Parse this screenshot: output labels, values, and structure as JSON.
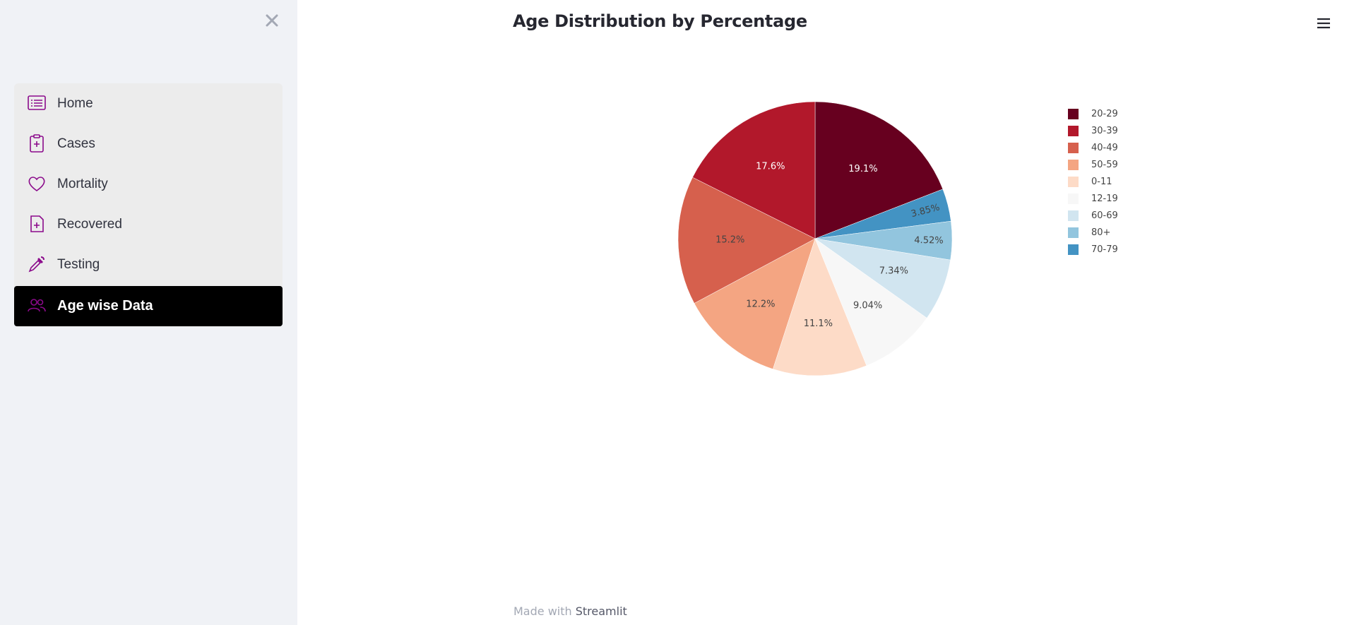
{
  "sidebar": {
    "items": [
      {
        "label": "Home",
        "icon": "list-icon",
        "active": false
      },
      {
        "label": "Cases",
        "icon": "clipboard-plus-icon",
        "active": false
      },
      {
        "label": "Mortality",
        "icon": "heart-icon",
        "active": false
      },
      {
        "label": "Recovered",
        "icon": "file-plus-icon",
        "active": false
      },
      {
        "label": "Testing",
        "icon": "eyedropper-icon",
        "active": false
      },
      {
        "label": "Age wise Data",
        "icon": "people-icon",
        "active": true
      }
    ],
    "icon_color": "#8b0a8b"
  },
  "main": {
    "title": "Age Distribution by Percentage"
  },
  "footer": {
    "prefix": "Made with",
    "brand": "Streamlit"
  },
  "chart_data": {
    "type": "pie",
    "title": "Age Distribution by Percentage",
    "slices": [
      {
        "label": "20-29",
        "value": 19.1,
        "text": "19.1%",
        "color": "#67001f",
        "text_color": "#ffffff"
      },
      {
        "label": "70-79",
        "value": 3.85,
        "text": "3.85%",
        "color": "#4393c3",
        "text_color": "#444444"
      },
      {
        "label": "80+",
        "value": 4.52,
        "text": "4.52%",
        "color": "#92c5de",
        "text_color": "#444444"
      },
      {
        "label": "60-69",
        "value": 7.34,
        "text": "7.34%",
        "color": "#d1e5f0",
        "text_color": "#444444"
      },
      {
        "label": "12-19",
        "value": 9.04,
        "text": "9.04%",
        "color": "#f7f7f7",
        "text_color": "#444444"
      },
      {
        "label": "0-11",
        "value": 11.1,
        "text": "11.1%",
        "color": "#fddbc7",
        "text_color": "#444444"
      },
      {
        "label": "50-59",
        "value": 12.2,
        "text": "12.2%",
        "color": "#f4a582",
        "text_color": "#444444"
      },
      {
        "label": "40-49",
        "value": 15.2,
        "text": "15.2%",
        "color": "#d6604d",
        "text_color": "#444444"
      },
      {
        "label": "30-39",
        "value": 17.6,
        "text": "17.6%",
        "color": "#b2182b",
        "text_color": "#ffffff"
      }
    ],
    "legend": [
      {
        "label": "20-29",
        "color": "#67001f"
      },
      {
        "label": "30-39",
        "color": "#b2182b"
      },
      {
        "label": "40-49",
        "color": "#d6604d"
      },
      {
        "label": "50-59",
        "color": "#f4a582"
      },
      {
        "label": "0-11",
        "color": "#fddbc7"
      },
      {
        "label": "12-19",
        "color": "#f7f7f7"
      },
      {
        "label": "60-69",
        "color": "#d1e5f0"
      },
      {
        "label": "80+",
        "color": "#92c5de"
      },
      {
        "label": "70-79",
        "color": "#4393c3"
      }
    ],
    "legend_position": "right"
  }
}
